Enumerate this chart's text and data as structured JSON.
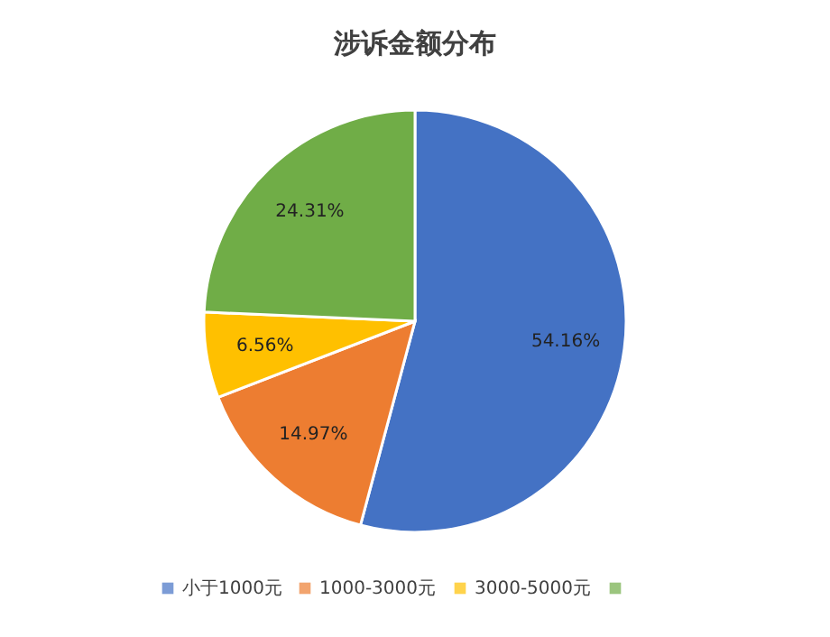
{
  "chart_data": {
    "type": "pie",
    "title": "涉诉金额分布",
    "categories": [
      "小于1000元",
      "1000-3000元",
      "3000-5000元",
      null
    ],
    "values": [
      54.16,
      14.97,
      6.56,
      24.31
    ],
    "value_labels": [
      "54.16%",
      "14.97%",
      "6.56%",
      "24.31%"
    ],
    "colors": [
      "#4472c4",
      "#ed7d31",
      "#ffc000",
      "#70ad47"
    ],
    "legend": "bottom"
  }
}
